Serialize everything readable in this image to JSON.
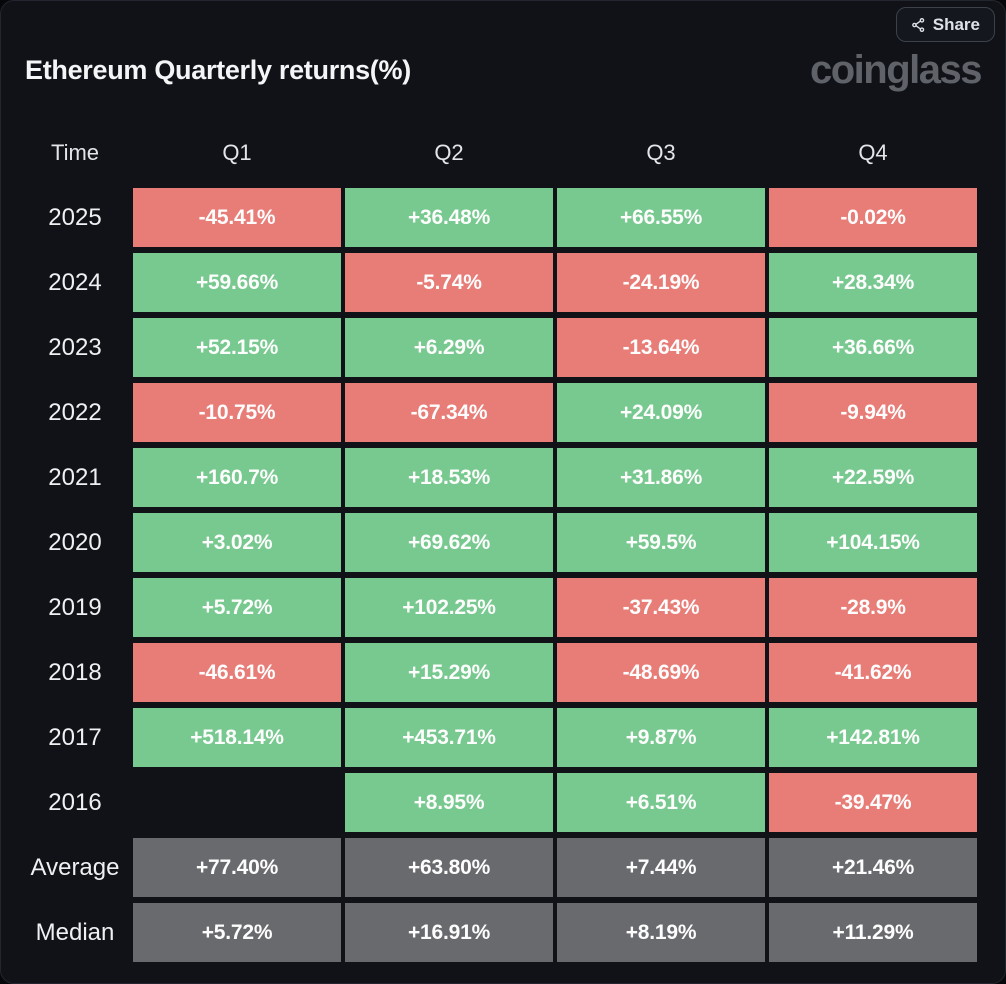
{
  "card": {
    "title": "Ethereum Quarterly returns(%)",
    "logo_text": "coinglass",
    "share_label": "Share"
  },
  "colors": {
    "card_background": "#101217",
    "positive": "#77c98f",
    "negative": "#e87d78",
    "summary": "#696a6e",
    "cell_text": "#fdfdfd"
  },
  "chart_data": {
    "type": "heatmap",
    "title": "Ethereum Quarterly returns(%)",
    "columns": [
      "Time",
      "Q1",
      "Q2",
      "Q3",
      "Q4"
    ],
    "rows": [
      {
        "label": "2025",
        "values": [
          "-45.41%",
          "+36.48%",
          "+66.55%",
          "-0.02%"
        ]
      },
      {
        "label": "2024",
        "values": [
          "+59.66%",
          "-5.74%",
          "-24.19%",
          "+28.34%"
        ]
      },
      {
        "label": "2023",
        "values": [
          "+52.15%",
          "+6.29%",
          "-13.64%",
          "+36.66%"
        ]
      },
      {
        "label": "2022",
        "values": [
          "-10.75%",
          "-67.34%",
          "+24.09%",
          "-9.94%"
        ]
      },
      {
        "label": "2021",
        "values": [
          "+160.7%",
          "+18.53%",
          "+31.86%",
          "+22.59%"
        ]
      },
      {
        "label": "2020",
        "values": [
          "+3.02%",
          "+69.62%",
          "+59.5%",
          "+104.15%"
        ]
      },
      {
        "label": "2019",
        "values": [
          "+5.72%",
          "+102.25%",
          "-37.43%",
          "-28.9%"
        ]
      },
      {
        "label": "2018",
        "values": [
          "-46.61%",
          "+15.29%",
          "-48.69%",
          "-41.62%"
        ]
      },
      {
        "label": "2017",
        "values": [
          "+518.14%",
          "+453.71%",
          "+9.87%",
          "+142.81%"
        ]
      },
      {
        "label": "2016",
        "values": [
          null,
          "+8.95%",
          "+6.51%",
          "-39.47%"
        ]
      },
      {
        "label": "Average",
        "values": [
          "+77.40%",
          "+63.80%",
          "+7.44%",
          "+21.46%"
        ],
        "summary": true
      },
      {
        "label": "Median",
        "values": [
          "+5.72%",
          "+16.91%",
          "+8.19%",
          "+11.29%"
        ],
        "summary": true
      }
    ]
  }
}
